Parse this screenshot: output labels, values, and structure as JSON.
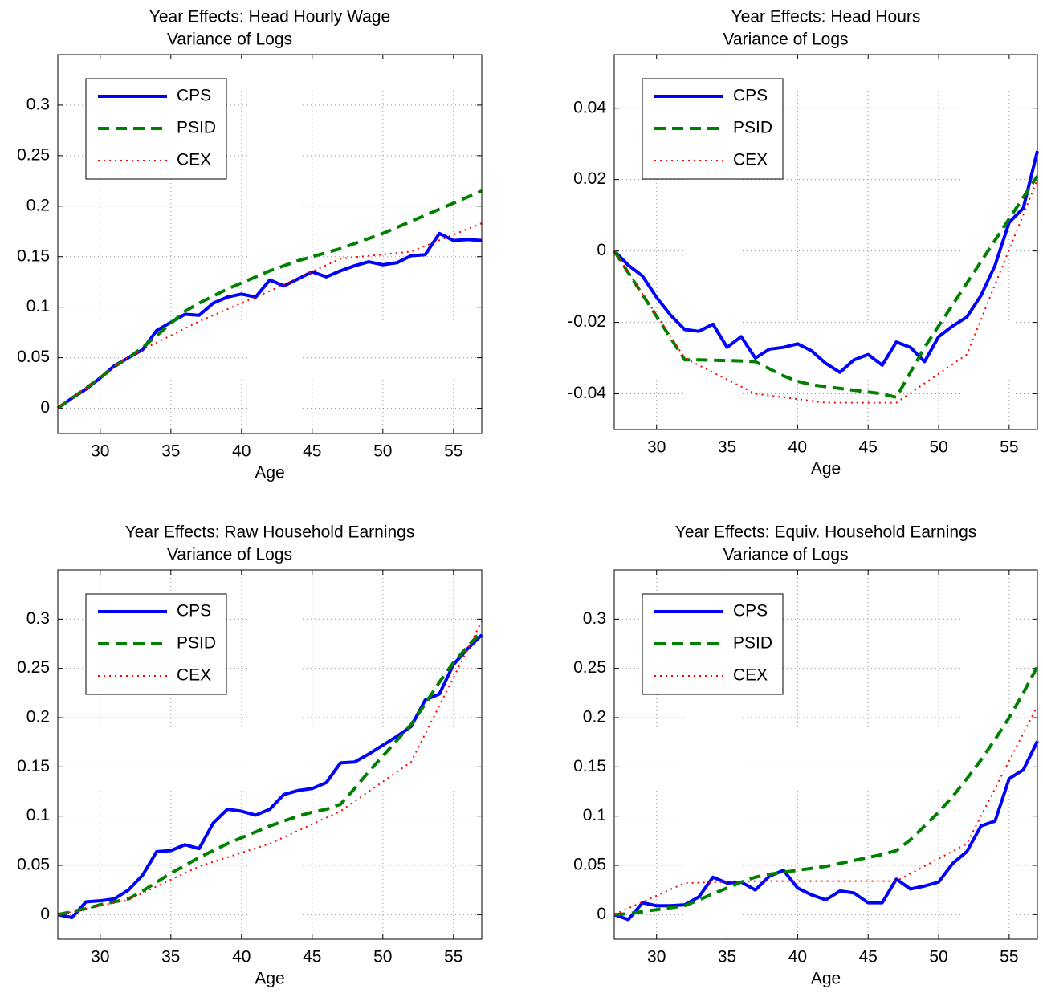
{
  "chart_data": [
    {
      "type": "line",
      "title": "Year Effects: Head Hourly Wage",
      "subtitle": "Variance of Logs",
      "xlabel": "Age",
      "x": [
        27,
        28,
        29,
        30,
        31,
        32,
        33,
        34,
        35,
        36,
        37,
        38,
        39,
        40,
        41,
        42,
        43,
        44,
        45,
        46,
        47,
        48,
        49,
        50,
        51,
        52,
        53,
        54,
        55,
        56,
        57
      ],
      "series": [
        {
          "name": "CPS",
          "color": "#0000ff",
          "linestyle": "solid",
          "values": [
            0,
            0.01,
            0.019,
            0.03,
            0.042,
            0.05,
            0.058,
            0.077,
            0.085,
            0.093,
            0.092,
            0.104,
            0.11,
            0.113,
            0.11,
            0.127,
            0.121,
            0.128,
            0.135,
            0.13,
            0.136,
            0.141,
            0.145,
            0.142,
            0.144,
            0.151,
            0.152,
            0.173,
            0.166,
            0.167,
            0.166
          ]
        },
        {
          "name": "PSID",
          "color": "#008000",
          "linestyle": "dashed",
          "values": [
            0,
            0.01,
            0.02,
            0.03,
            0.041,
            0.05,
            0.06,
            0.072,
            0.084,
            0.096,
            0.104,
            0.111,
            0.118,
            0.124,
            0.13,
            0.136,
            0.141,
            0.146,
            0.15,
            0.154,
            0.158,
            0.163,
            0.168,
            0.173,
            0.179,
            0.185,
            0.191,
            0.197,
            0.203,
            0.209,
            0.215
          ]
        },
        {
          "name": "CEX",
          "color": "#ff0000",
          "linestyle": "dotted",
          "values": [
            0,
            0.0102,
            0.0204,
            0.0306,
            0.0408,
            0.051,
            0.058,
            0.065,
            0.072,
            0.079,
            0.086,
            0.092,
            0.098,
            0.104,
            0.11,
            0.116,
            0.1224,
            0.1288,
            0.1352,
            0.1416,
            0.148,
            0.1494,
            0.1508,
            0.1522,
            0.1536,
            0.155,
            0.1606,
            0.1662,
            0.1718,
            0.1774,
            0.183
          ]
        }
      ],
      "xlim": [
        27,
        57
      ],
      "ylim": [
        -0.025,
        0.35
      ],
      "xticks": [
        30,
        35,
        40,
        45,
        50,
        55
      ],
      "yticks": [
        0,
        0.05,
        0.1,
        0.15,
        0.2,
        0.25,
        0.3
      ],
      "grid": true,
      "legend": "upper-left"
    },
    {
      "type": "line",
      "title": "Year Effects: Head Hours",
      "subtitle": "Variance of Logs",
      "xlabel": "Age",
      "x": [
        27,
        28,
        29,
        30,
        31,
        32,
        33,
        34,
        35,
        36,
        37,
        38,
        39,
        40,
        41,
        42,
        43,
        44,
        45,
        46,
        47,
        48,
        49,
        50,
        51,
        52,
        53,
        54,
        55,
        56,
        57
      ],
      "series": [
        {
          "name": "CPS",
          "color": "#0000ff",
          "linestyle": "solid",
          "values": [
            0,
            -0.004,
            -0.007,
            -0.013,
            -0.018,
            -0.022,
            -0.0225,
            -0.0205,
            -0.027,
            -0.024,
            -0.03,
            -0.0275,
            -0.027,
            -0.026,
            -0.028,
            -0.0315,
            -0.034,
            -0.0305,
            -0.029,
            -0.032,
            -0.0255,
            -0.027,
            -0.031,
            -0.024,
            -0.021,
            -0.0185,
            -0.0125,
            -0.004,
            0.008,
            0.012,
            0.028
          ]
        },
        {
          "name": "PSID",
          "color": "#008000",
          "linestyle": "dashed",
          "values": [
            0,
            -0.0061,
            -0.0122,
            -0.0183,
            -0.0244,
            -0.0305,
            -0.0305,
            -0.0306,
            -0.0307,
            -0.0308,
            -0.031,
            -0.033,
            -0.035,
            -0.0365,
            -0.0375,
            -0.038,
            -0.0385,
            -0.039,
            -0.0395,
            -0.04,
            -0.041,
            -0.034,
            -0.027,
            -0.021,
            -0.015,
            -0.009,
            -0.003,
            0.003,
            0.009,
            0.015,
            0.021
          ]
        },
        {
          "name": "CEX",
          "color": "#ff0000",
          "linestyle": "dotted",
          "values": [
            0,
            -0.006,
            -0.012,
            -0.018,
            -0.024,
            -0.03,
            -0.032,
            -0.034,
            -0.036,
            -0.038,
            -0.04,
            -0.0405,
            -0.041,
            -0.0415,
            -0.042,
            -0.0425,
            -0.0425,
            -0.0425,
            -0.0425,
            -0.0425,
            -0.0425,
            -0.0398,
            -0.0371,
            -0.0344,
            -0.0317,
            -0.029,
            -0.0192,
            -0.0094,
            0.0004,
            0.0102,
            0.02
          ]
        }
      ],
      "xlim": [
        27,
        57
      ],
      "ylim": [
        -0.05,
        0.055
      ],
      "xticks": [
        30,
        35,
        40,
        45,
        50,
        55
      ],
      "yticks": [
        -0.04,
        -0.02,
        0,
        0.02,
        0.04
      ],
      "grid": true,
      "legend": "upper-left"
    },
    {
      "type": "line",
      "title": "Year Effects: Raw Household Earnings",
      "subtitle": "Variance of Logs",
      "xlabel": "Age",
      "x": [
        27,
        28,
        29,
        30,
        31,
        32,
        33,
        34,
        35,
        36,
        37,
        38,
        39,
        40,
        41,
        42,
        43,
        44,
        45,
        46,
        47,
        48,
        49,
        50,
        51,
        52,
        53,
        54,
        55,
        56,
        57
      ],
      "series": [
        {
          "name": "CPS",
          "color": "#0000ff",
          "linestyle": "solid",
          "values": [
            0,
            -0.003,
            0.013,
            0.014,
            0.016,
            0.025,
            0.04,
            0.064,
            0.065,
            0.071,
            0.067,
            0.093,
            0.107,
            0.105,
            0.101,
            0.107,
            0.122,
            0.126,
            0.128,
            0.134,
            0.154,
            0.155,
            0.163,
            0.172,
            0.181,
            0.191,
            0.218,
            0.224,
            0.254,
            0.27,
            0.284
          ]
        },
        {
          "name": "PSID",
          "color": "#008000",
          "linestyle": "dashed",
          "values": [
            0,
            0.003,
            0.006,
            0.01,
            0.013,
            0.016,
            0.024,
            0.033,
            0.042,
            0.05,
            0.058,
            0.065,
            0.072,
            0.078,
            0.084,
            0.09,
            0.095,
            0.1,
            0.104,
            0.107,
            0.112,
            0.128,
            0.145,
            0.161,
            0.177,
            0.193,
            0.214,
            0.236,
            0.256,
            0.272,
            0.288
          ]
        },
        {
          "name": "CEX",
          "color": "#ff0000",
          "linestyle": "dotted",
          "values": [
            0,
            0.003,
            0.006,
            0.009,
            0.012,
            0.015,
            0.0218,
            0.0286,
            0.0354,
            0.0422,
            0.049,
            0.0536,
            0.0582,
            0.0628,
            0.0674,
            0.072,
            0.0786,
            0.0852,
            0.0918,
            0.0984,
            0.105,
            0.115,
            0.125,
            0.135,
            0.145,
            0.155,
            0.1836,
            0.2122,
            0.2408,
            0.2694,
            0.298
          ]
        }
      ],
      "xlim": [
        27,
        57
      ],
      "ylim": [
        -0.025,
        0.35
      ],
      "xticks": [
        30,
        35,
        40,
        45,
        50,
        55
      ],
      "yticks": [
        0,
        0.05,
        0.1,
        0.15,
        0.2,
        0.25,
        0.3
      ],
      "grid": true,
      "legend": "upper-left"
    },
    {
      "type": "line",
      "title": "Year Effects: Equiv. Household Earnings",
      "subtitle": "Variance of Logs",
      "xlabel": "Age",
      "x": [
        27,
        28,
        29,
        30,
        31,
        32,
        33,
        34,
        35,
        36,
        37,
        38,
        39,
        40,
        41,
        42,
        43,
        44,
        45,
        46,
        47,
        48,
        49,
        50,
        51,
        52,
        53,
        54,
        55,
        56,
        57
      ],
      "series": [
        {
          "name": "CPS",
          "color": "#0000ff",
          "linestyle": "solid",
          "values": [
            0,
            -0.005,
            0.012,
            0.009,
            0.009,
            0.01,
            0.018,
            0.038,
            0.032,
            0.033,
            0.025,
            0.039,
            0.045,
            0.027,
            0.02,
            0.015,
            0.024,
            0.022,
            0.012,
            0.012,
            0.036,
            0.026,
            0.029,
            0.033,
            0.052,
            0.064,
            0.09,
            0.095,
            0.138,
            0.147,
            0.176
          ]
        },
        {
          "name": "PSID",
          "color": "#008000",
          "linestyle": "dashed",
          "values": [
            0,
            0.001,
            0.003,
            0.005,
            0.007,
            0.009,
            0.015,
            0.021,
            0.027,
            0.033,
            0.038,
            0.041,
            0.043,
            0.045,
            0.047,
            0.049,
            0.052,
            0.055,
            0.058,
            0.061,
            0.065,
            0.076,
            0.09,
            0.104,
            0.12,
            0.138,
            0.157,
            0.178,
            0.2,
            0.225,
            0.252
          ]
        },
        {
          "name": "CEX",
          "color": "#ff0000",
          "linestyle": "dotted",
          "values": [
            0,
            0.0064,
            0.0128,
            0.0192,
            0.0256,
            0.032,
            0.0324,
            0.0328,
            0.0332,
            0.0336,
            0.034,
            0.034,
            0.034,
            0.034,
            0.034,
            0.034,
            0.034,
            0.034,
            0.034,
            0.034,
            0.034,
            0.0416,
            0.0492,
            0.0568,
            0.0644,
            0.072,
            0.1,
            0.128,
            0.156,
            0.184,
            0.212
          ]
        }
      ],
      "xlim": [
        27,
        57
      ],
      "ylim": [
        -0.025,
        0.35
      ],
      "xticks": [
        30,
        35,
        40,
        45,
        50,
        55
      ],
      "yticks": [
        0,
        0.05,
        0.1,
        0.15,
        0.2,
        0.25,
        0.3
      ],
      "grid": true,
      "legend": "upper-left"
    }
  ]
}
